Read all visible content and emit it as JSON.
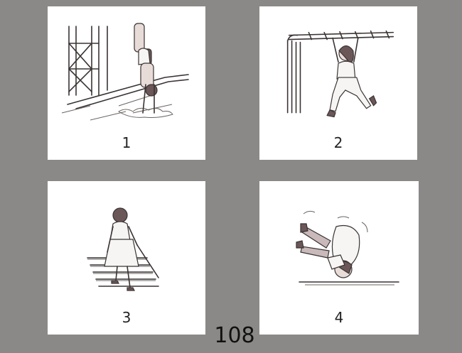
{
  "panels": [
    {
      "number": "1",
      "scene_icon": "handstand-pool-icon"
    },
    {
      "number": "2",
      "scene_icon": "monkey-bars-icon"
    },
    {
      "number": "3",
      "scene_icon": "stairs-cane-icon"
    },
    {
      "number": "4",
      "scene_icon": "fall-tumble-icon"
    }
  ],
  "page_number": "108",
  "colors": {
    "background": "#8b8987",
    "card": "#ffffff",
    "ink": "#3a3433"
  }
}
